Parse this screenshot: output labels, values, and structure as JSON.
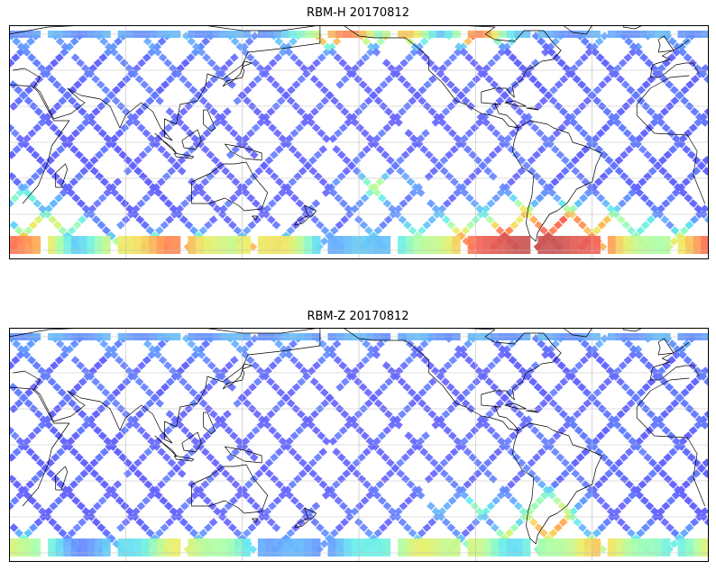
{
  "panels": [
    {
      "title": "RBM-H 20170812",
      "hot_zones": [
        {
          "lon": -70,
          "lat": -55,
          "rx": 55,
          "ry": 14,
          "level": 1.0
        },
        {
          "lon": -55,
          "lat": -45,
          "rx": 40,
          "ry": 10,
          "level": 0.85
        },
        {
          "lon": -80,
          "lat": -40,
          "rx": 15,
          "ry": 8,
          "level": 0.7
        },
        {
          "lon": 20,
          "lat": -55,
          "rx": 25,
          "ry": 8,
          "level": 0.8
        },
        {
          "lon": 40,
          "lat": -45,
          "rx": 20,
          "ry": 8,
          "level": 0.6
        },
        {
          "lon": 100,
          "lat": -58,
          "rx": 40,
          "ry": 6,
          "level": 0.65
        },
        {
          "lon": 150,
          "lat": -58,
          "rx": 25,
          "ry": 5,
          "level": 0.55
        },
        {
          "lon": -170,
          "lat": 58,
          "rx": 20,
          "ry": 5,
          "level": 0.75
        },
        {
          "lon": -140,
          "lat": 58,
          "rx": 15,
          "ry": 5,
          "level": 0.6
        },
        {
          "lon": -100,
          "lat": 58,
          "rx": 15,
          "ry": 5,
          "level": 0.7
        },
        {
          "lon": -150,
          "lat": -25,
          "rx": 15,
          "ry": 8,
          "level": 0.45
        },
        {
          "lon": 30,
          "lat": -30,
          "rx": 15,
          "ry": 6,
          "level": 0.4
        }
      ]
    },
    {
      "title": "RBM-Z 20170812",
      "hot_zones": [
        {
          "lon": -62,
          "lat": -42,
          "rx": 14,
          "ry": 14,
          "level": 0.85
        },
        {
          "lon": -75,
          "lat": -50,
          "rx": 14,
          "ry": 6,
          "level": 0.75
        },
        {
          "lon": -40,
          "lat": -55,
          "rx": 35,
          "ry": 6,
          "level": 0.55
        },
        {
          "lon": -120,
          "lat": -58,
          "rx": 40,
          "ry": 5,
          "level": 0.45
        },
        {
          "lon": 20,
          "lat": -55,
          "rx": 20,
          "ry": 6,
          "level": 0.5
        },
        {
          "lon": 110,
          "lat": -58,
          "rx": 30,
          "ry": 5,
          "level": 0.45
        },
        {
          "lon": -100,
          "lat": -35,
          "rx": 20,
          "ry": 6,
          "level": 0.35
        }
      ]
    }
  ],
  "map_extent": {
    "lon_min": 20,
    "lon_max": 380,
    "lat_min": -65,
    "lat_max": 65
  },
  "graticule": {
    "lon_step": 60,
    "lat_step": 20
  },
  "colormap": [
    "#6666ff",
    "#66aaff",
    "#66eeee",
    "#aaffaa",
    "#eeee66",
    "#ffaa55",
    "#ff6655",
    "#cc5555"
  ],
  "coastline_color": "#000000",
  "grid_color": "#bbbbbb"
}
